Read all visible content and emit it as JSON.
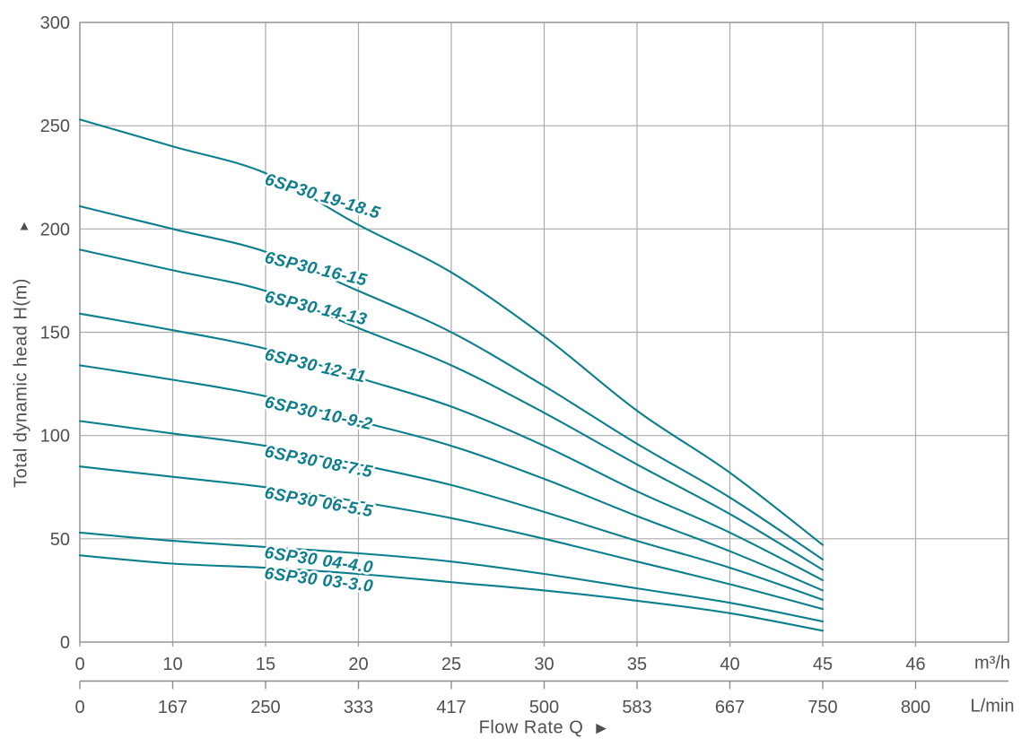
{
  "chart_data": {
    "type": "line",
    "title": "",
    "x_axis": {
      "label": "Flow Rate Q",
      "arrow": "▶",
      "unit_primary": "m³/h",
      "unit_secondary": "L/min",
      "ticks_m3h": [
        "0",
        "10",
        "15",
        "20",
        "25",
        "30",
        "35",
        "40",
        "45",
        "46"
      ],
      "ticks_lmin": [
        "0",
        "167",
        "250",
        "333",
        "417",
        "500",
        "583",
        "667",
        "750",
        "800"
      ]
    },
    "y_axis": {
      "label": "Total dynamic head H(m)",
      "arrow": "▲",
      "ticks": [
        "300",
        "250",
        "200",
        "150",
        "100",
        "50",
        "0"
      ],
      "range": [
        0,
        300
      ]
    },
    "grid": true,
    "legend_position": "on-curve",
    "q_values_m3h": [
      0,
      10,
      15,
      20,
      25,
      30,
      35,
      40,
      45
    ],
    "series": [
      {
        "name": "6SP30 19-18.5",
        "heads": [
          253,
          240,
          227,
          202,
          179,
          148,
          112,
          82,
          47
        ]
      },
      {
        "name": "6SP30 16-15",
        "heads": [
          211,
          200,
          189,
          170,
          150,
          124,
          96,
          70,
          40
        ]
      },
      {
        "name": "6SP30 14-13",
        "heads": [
          190,
          180,
          170,
          152,
          134,
          111,
          86,
          62,
          35
        ]
      },
      {
        "name": "6SP30 12-11",
        "heads": [
          159,
          151,
          142,
          128,
          114,
          95,
          73,
          53,
          30
        ]
      },
      {
        "name": "6SP30 10-9.2",
        "heads": [
          134,
          127,
          119,
          107,
          95,
          79,
          61,
          44,
          25
        ]
      },
      {
        "name": "6SP30 08-7.5",
        "heads": [
          107,
          101,
          95,
          86,
          76,
          63,
          49,
          36,
          20.5
        ]
      },
      {
        "name": "6SP30 06-5.5",
        "heads": [
          85,
          80,
          75,
          68,
          60,
          50,
          39,
          28,
          16
        ]
      },
      {
        "name": "6SP30 04-4.0",
        "heads": [
          53,
          49,
          46,
          43,
          39,
          33,
          26,
          19,
          10
        ]
      },
      {
        "name": "6SP30 03-3.0",
        "heads": [
          42,
          38,
          36,
          33,
          29,
          25,
          20,
          14,
          5.5
        ]
      }
    ],
    "colors": {
      "curve": "#0b7f8e",
      "curve_label": "#0e7e8d",
      "grid_line": "#ababab",
      "plot_border": "#9b9b9b",
      "tick_text": "#4d5052",
      "ruler_line": "#8c8c8c",
      "background": "#ffffff"
    }
  }
}
